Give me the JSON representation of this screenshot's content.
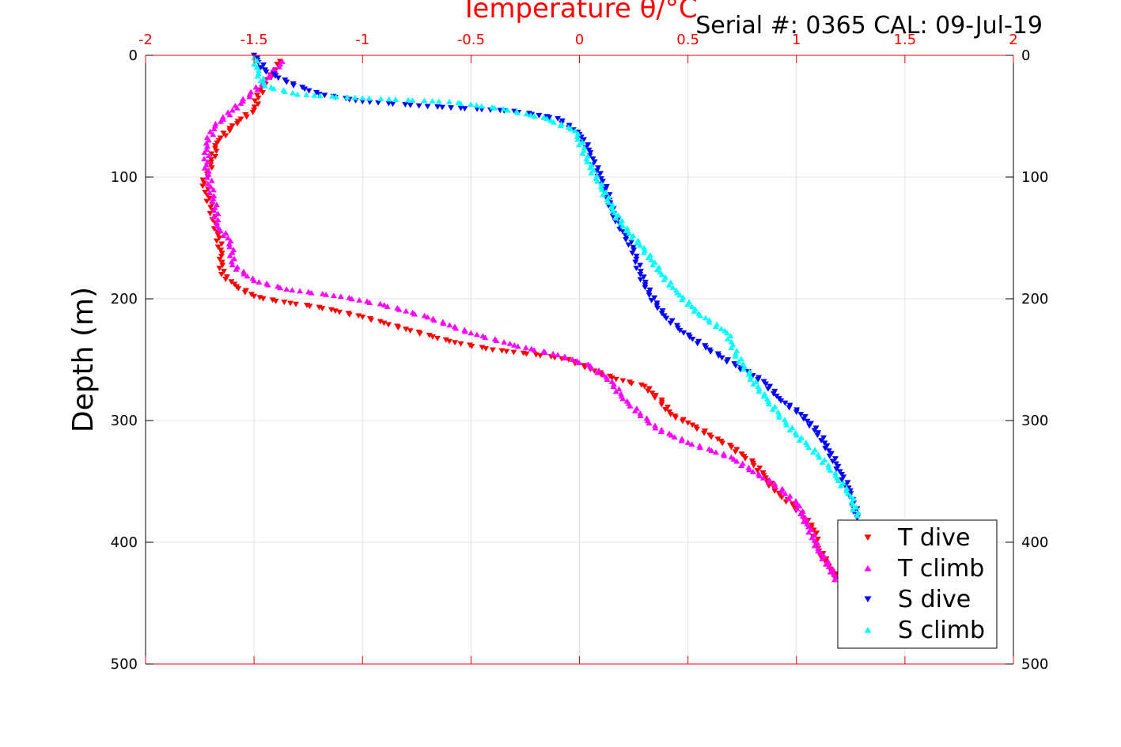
{
  "chart_data": {
    "type": "scatter",
    "title": "Temperature θ/°C",
    "annotation": "Serial #: 0365  CAL: 09-Jul-19",
    "xlabel": "Temperature θ/°C",
    "ylabel": "Depth (m)",
    "xlim": [
      -2,
      2
    ],
    "ylim": [
      500,
      0
    ],
    "y_reversed": true,
    "xticks": [
      "-2",
      "-1.5",
      "-1",
      "-0.5",
      "0",
      "0.5",
      "1",
      "1.5",
      "2"
    ],
    "yticks": [
      "0",
      "100",
      "200",
      "300",
      "400",
      "500"
    ],
    "x_axis_position": "top",
    "axis_color": "#ff0000",
    "grid": true,
    "legend_position": "bottom-right",
    "series": [
      {
        "name": "T dive",
        "color": "#ff0000",
        "marker": "triangle-down",
        "points": [
          [
            -1.38,
            5
          ],
          [
            -1.4,
            12
          ],
          [
            -1.45,
            22
          ],
          [
            -1.48,
            35
          ],
          [
            -1.5,
            45
          ],
          [
            -1.6,
            58
          ],
          [
            -1.67,
            72
          ],
          [
            -1.7,
            90
          ],
          [
            -1.73,
            105
          ],
          [
            -1.7,
            125
          ],
          [
            -1.67,
            145
          ],
          [
            -1.65,
            165
          ],
          [
            -1.65,
            180
          ],
          [
            -1.58,
            190
          ],
          [
            -1.5,
            198
          ],
          [
            -1.4,
            202
          ],
          [
            -1.2,
            207
          ],
          [
            -1.0,
            215
          ],
          [
            -0.8,
            225
          ],
          [
            -0.6,
            235
          ],
          [
            -0.4,
            242
          ],
          [
            -0.2,
            246
          ],
          [
            -0.05,
            250
          ],
          [
            0.05,
            258
          ],
          [
            0.15,
            265
          ],
          [
            0.3,
            272
          ],
          [
            0.38,
            285
          ],
          [
            0.42,
            295
          ],
          [
            0.5,
            302
          ],
          [
            0.6,
            312
          ],
          [
            0.7,
            322
          ],
          [
            0.8,
            335
          ],
          [
            0.85,
            345
          ],
          [
            0.9,
            358
          ],
          [
            1.0,
            372
          ],
          [
            1.08,
            390
          ],
          [
            1.1,
            405
          ],
          [
            1.15,
            420
          ],
          [
            1.2,
            432
          ]
        ]
      },
      {
        "name": "T climb",
        "color": "#ff00ff",
        "marker": "triangle-up",
        "points": [
          [
            -1.37,
            5
          ],
          [
            -1.43,
            18
          ],
          [
            -1.52,
            32
          ],
          [
            -1.6,
            45
          ],
          [
            -1.68,
            58
          ],
          [
            -1.72,
            72
          ],
          [
            -1.72,
            90
          ],
          [
            -1.7,
            108
          ],
          [
            -1.68,
            125
          ],
          [
            -1.67,
            140
          ],
          [
            -1.62,
            150
          ],
          [
            -1.6,
            162
          ],
          [
            -1.6,
            172
          ],
          [
            -1.5,
            185
          ],
          [
            -1.35,
            192
          ],
          [
            -1.1,
            198
          ],
          [
            -0.9,
            205
          ],
          [
            -0.7,
            215
          ],
          [
            -0.5,
            228
          ],
          [
            -0.3,
            238
          ],
          [
            -0.1,
            246
          ],
          [
            0.05,
            255
          ],
          [
            0.15,
            268
          ],
          [
            0.2,
            282
          ],
          [
            0.28,
            294
          ],
          [
            0.35,
            306
          ],
          [
            0.5,
            318
          ],
          [
            0.7,
            330
          ],
          [
            0.8,
            342
          ],
          [
            0.9,
            352
          ],
          [
            1.0,
            368
          ],
          [
            1.05,
            385
          ],
          [
            1.1,
            405
          ],
          [
            1.15,
            420
          ],
          [
            1.2,
            435
          ]
        ]
      },
      {
        "name": "S dive",
        "color": "#0000ff",
        "marker": "triangle-down",
        "points": [
          [
            -1.5,
            0
          ],
          [
            -1.45,
            12
          ],
          [
            -1.35,
            22
          ],
          [
            -1.2,
            32
          ],
          [
            -1.0,
            38
          ],
          [
            -0.7,
            42
          ],
          [
            -0.3,
            46
          ],
          [
            -0.1,
            52
          ],
          [
            0.0,
            65
          ],
          [
            0.05,
            80
          ],
          [
            0.08,
            95
          ],
          [
            0.12,
            110
          ],
          [
            0.15,
            128
          ],
          [
            0.2,
            145
          ],
          [
            0.25,
            160
          ],
          [
            0.28,
            180
          ],
          [
            0.32,
            195
          ],
          [
            0.38,
            212
          ],
          [
            0.48,
            228
          ],
          [
            0.6,
            242
          ],
          [
            0.72,
            255
          ],
          [
            0.85,
            268
          ],
          [
            0.92,
            282
          ],
          [
            1.02,
            295
          ],
          [
            1.1,
            310
          ],
          [
            1.15,
            325
          ],
          [
            1.2,
            342
          ],
          [
            1.25,
            360
          ],
          [
            1.28,
            380
          ]
        ]
      },
      {
        "name": "S climb",
        "color": "#00ffff",
        "marker": "triangle-up",
        "points": [
          [
            -1.5,
            2
          ],
          [
            -1.48,
            15
          ],
          [
            -1.45,
            25
          ],
          [
            -1.3,
            32
          ],
          [
            -1.0,
            35
          ],
          [
            -0.6,
            38
          ],
          [
            -0.35,
            44
          ],
          [
            -0.15,
            52
          ],
          [
            -0.02,
            62
          ],
          [
            0.02,
            78
          ],
          [
            0.05,
            92
          ],
          [
            0.1,
            108
          ],
          [
            0.15,
            125
          ],
          [
            0.2,
            140
          ],
          [
            0.3,
            160
          ],
          [
            0.38,
            180
          ],
          [
            0.45,
            195
          ],
          [
            0.55,
            212
          ],
          [
            0.68,
            228
          ],
          [
            0.72,
            245
          ],
          [
            0.78,
            262
          ],
          [
            0.85,
            280
          ],
          [
            0.92,
            295
          ],
          [
            1.0,
            312
          ],
          [
            1.1,
            328
          ],
          [
            1.18,
            345
          ],
          [
            1.25,
            362
          ],
          [
            1.28,
            378
          ]
        ]
      }
    ]
  }
}
